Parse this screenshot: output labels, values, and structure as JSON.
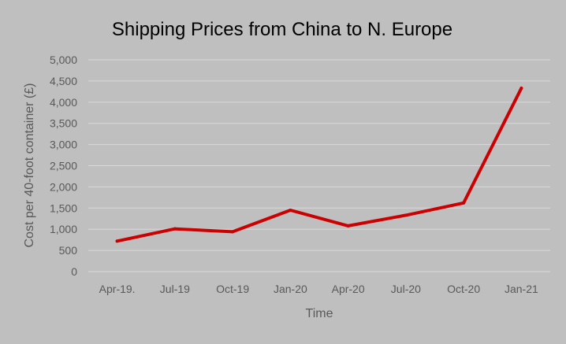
{
  "chart_data": {
    "type": "line",
    "title": "Shipping Prices from China to N. Europe",
    "xlabel": "Time",
    "ylabel": "Cost per 40-foot container (£)",
    "categories": [
      "Apr-19.",
      "Jul-19",
      "Oct-19",
      "Jan-20",
      "Apr-20",
      "Jul-20",
      "Oct-20",
      "Jan-21"
    ],
    "series": [
      {
        "name": "",
        "values": [
          720,
          1010,
          940,
          1450,
          1080,
          1330,
          1620,
          4330
        ],
        "color": "#cc0000"
      }
    ],
    "ylim": [
      0,
      5000
    ],
    "yticks": [
      "0",
      "500",
      "1,000",
      "1,500",
      "2,000",
      "2,500",
      "3,000",
      "3,500",
      "4,000",
      "4,500",
      "5,000"
    ],
    "ytick_values": [
      0,
      500,
      1000,
      1500,
      2000,
      2500,
      3000,
      3500,
      4000,
      4500,
      5000
    ],
    "grid": true,
    "legend": "none",
    "gridline_color": "#d9d9d9",
    "background_color": "#bfbfbf"
  }
}
